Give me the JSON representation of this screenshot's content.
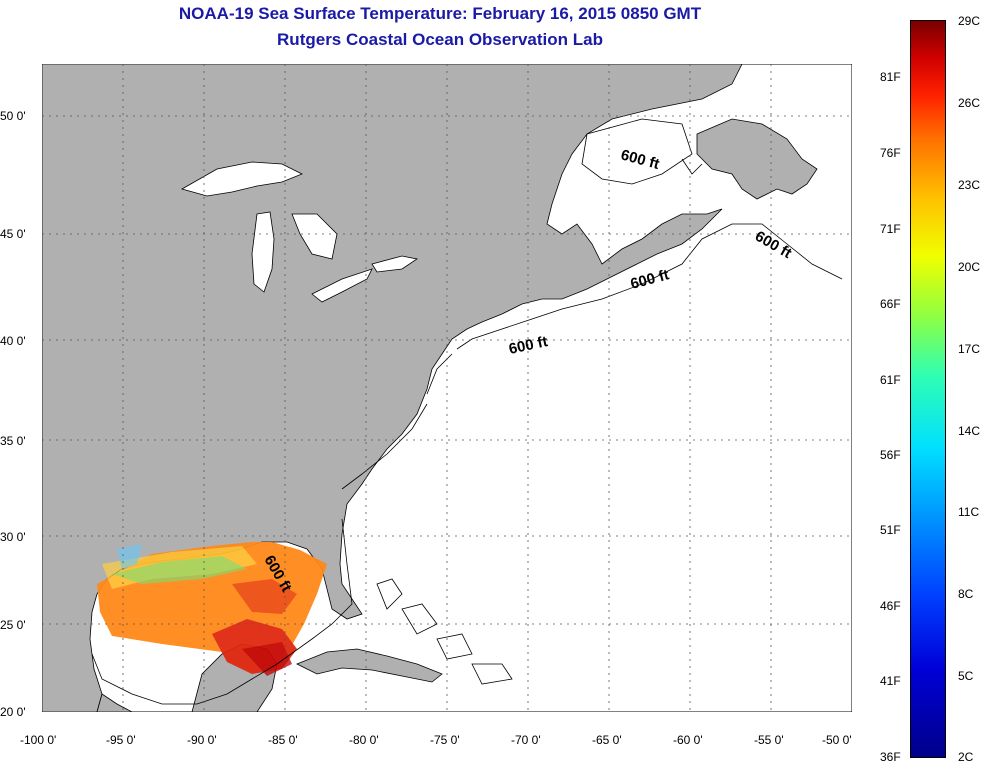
{
  "title": {
    "line1": "NOAA-19 Sea Surface Temperature:  February 16, 2015 0850 GMT",
    "line2": "Rutgers Coastal Ocean Observation Lab"
  },
  "map": {
    "lon_range": [
      -100,
      -50
    ],
    "lat_range": [
      20,
      52.5
    ],
    "lon_ticks": [
      "-100 0'",
      "-95 0'",
      "-90 0'",
      "-85 0'",
      "-80 0'",
      "-75 0'",
      "-70 0'",
      "-65 0'",
      "-60 0'",
      "-55 0'",
      "-50 0'"
    ],
    "lat_ticks": [
      "20 0'",
      "25 0'",
      "30 0'",
      "35 0'",
      "40 0'",
      "45 0'",
      "50 0'"
    ],
    "contour_labels": [
      "600 ft",
      "600 ft",
      "600 ft",
      "600 ft",
      "600 ft"
    ],
    "colors": {
      "land": "#b0b0b0",
      "ocean": "#ffffff",
      "grid": "#888888"
    }
  },
  "colorbar": {
    "celsius_labels": [
      "29C",
      "26C",
      "23C",
      "20C",
      "17C",
      "14C",
      "11C",
      "8C",
      "5C",
      "2C"
    ],
    "fahrenheit_labels": [
      "81F",
      "76F",
      "71F",
      "66F",
      "61F",
      "56F",
      "51F",
      "46F",
      "41F",
      "36F"
    ]
  }
}
